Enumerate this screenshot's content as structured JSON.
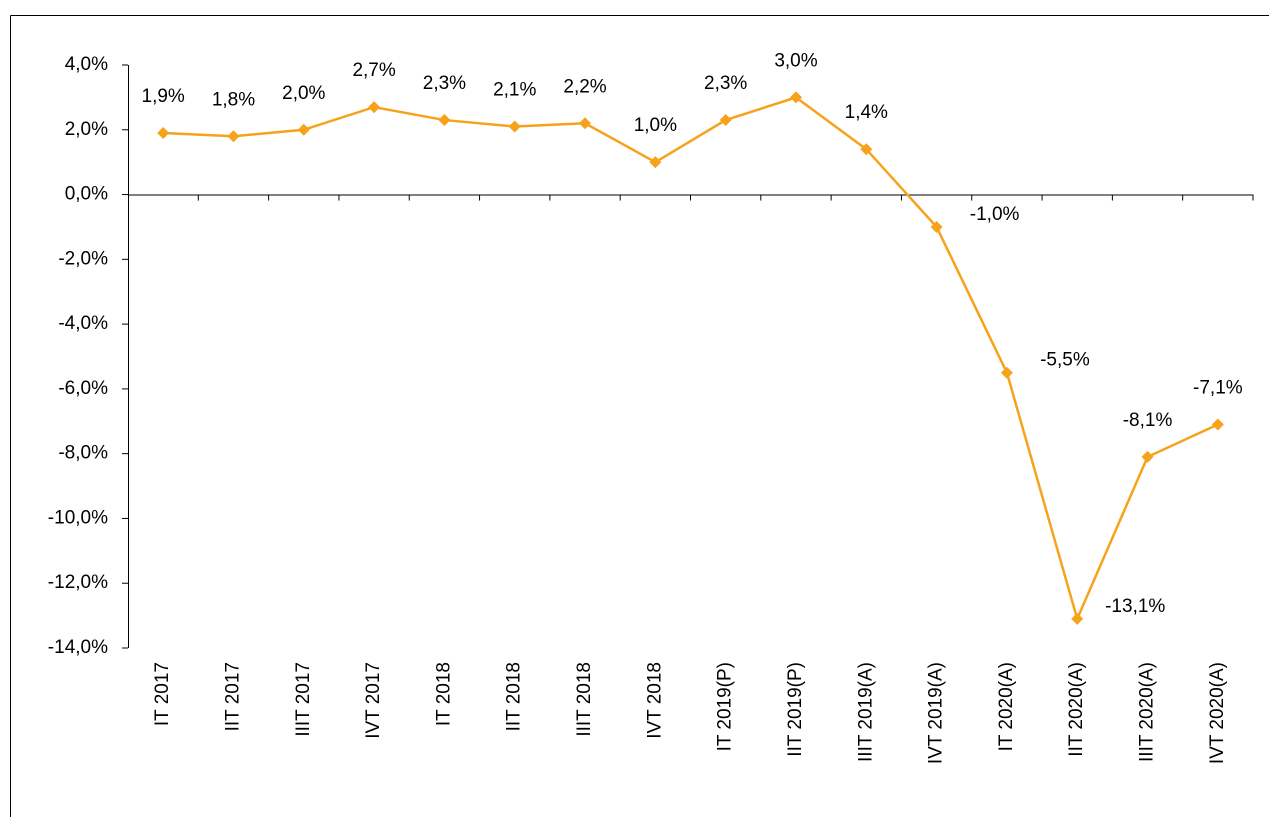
{
  "chart_data": {
    "type": "line",
    "categories": [
      "IT 2017",
      "IIT 2017",
      "IIIT 2017",
      "IVT 2017",
      "IT 2018",
      "IIT 2018",
      "IIIT 2018",
      "IVT 2018",
      "IT 2019(P)",
      "IIT 2019(P)",
      "IIIT 2019(A)",
      "IVT 2019(A)",
      "IT 2020(A)",
      "IIT 2020(A)",
      "IIIT 2020(A)",
      "IVT 2020(A)"
    ],
    "series": [
      {
        "color": "#f7a21b",
        "values": [
          1.9,
          1.8,
          2.0,
          2.7,
          2.3,
          2.1,
          2.2,
          1.0,
          2.3,
          3.0,
          1.4,
          -1.0,
          -5.5,
          -13.1,
          -8.1,
          -7.1
        ],
        "value_labels": [
          "1,9%",
          "1,8%",
          "2,0%",
          "2,7%",
          "2,3%",
          "2,1%",
          "2,2%",
          "1,0%",
          "2,3%",
          "3,0%",
          "1,4%",
          "-1,0%",
          "-5,5%",
          "-13,1%",
          "-8,1%",
          "-7,1%"
        ]
      }
    ],
    "ylim": [
      -14,
      4
    ],
    "yticks": [
      {
        "value": 4,
        "label": "4,0%"
      },
      {
        "value": 2,
        "label": "2,0%"
      },
      {
        "value": 0,
        "label": "0,0%"
      },
      {
        "value": -2,
        "label": "-2,0%"
      },
      {
        "value": -4,
        "label": "-4,0%"
      },
      {
        "value": -6,
        "label": "-6,0%"
      },
      {
        "value": -8,
        "label": "-8,0%"
      },
      {
        "value": -10,
        "label": "-10,0%"
      },
      {
        "value": -12,
        "label": "-12,0%"
      },
      {
        "value": -14,
        "label": "-14,0%"
      }
    ],
    "grid": false
  }
}
